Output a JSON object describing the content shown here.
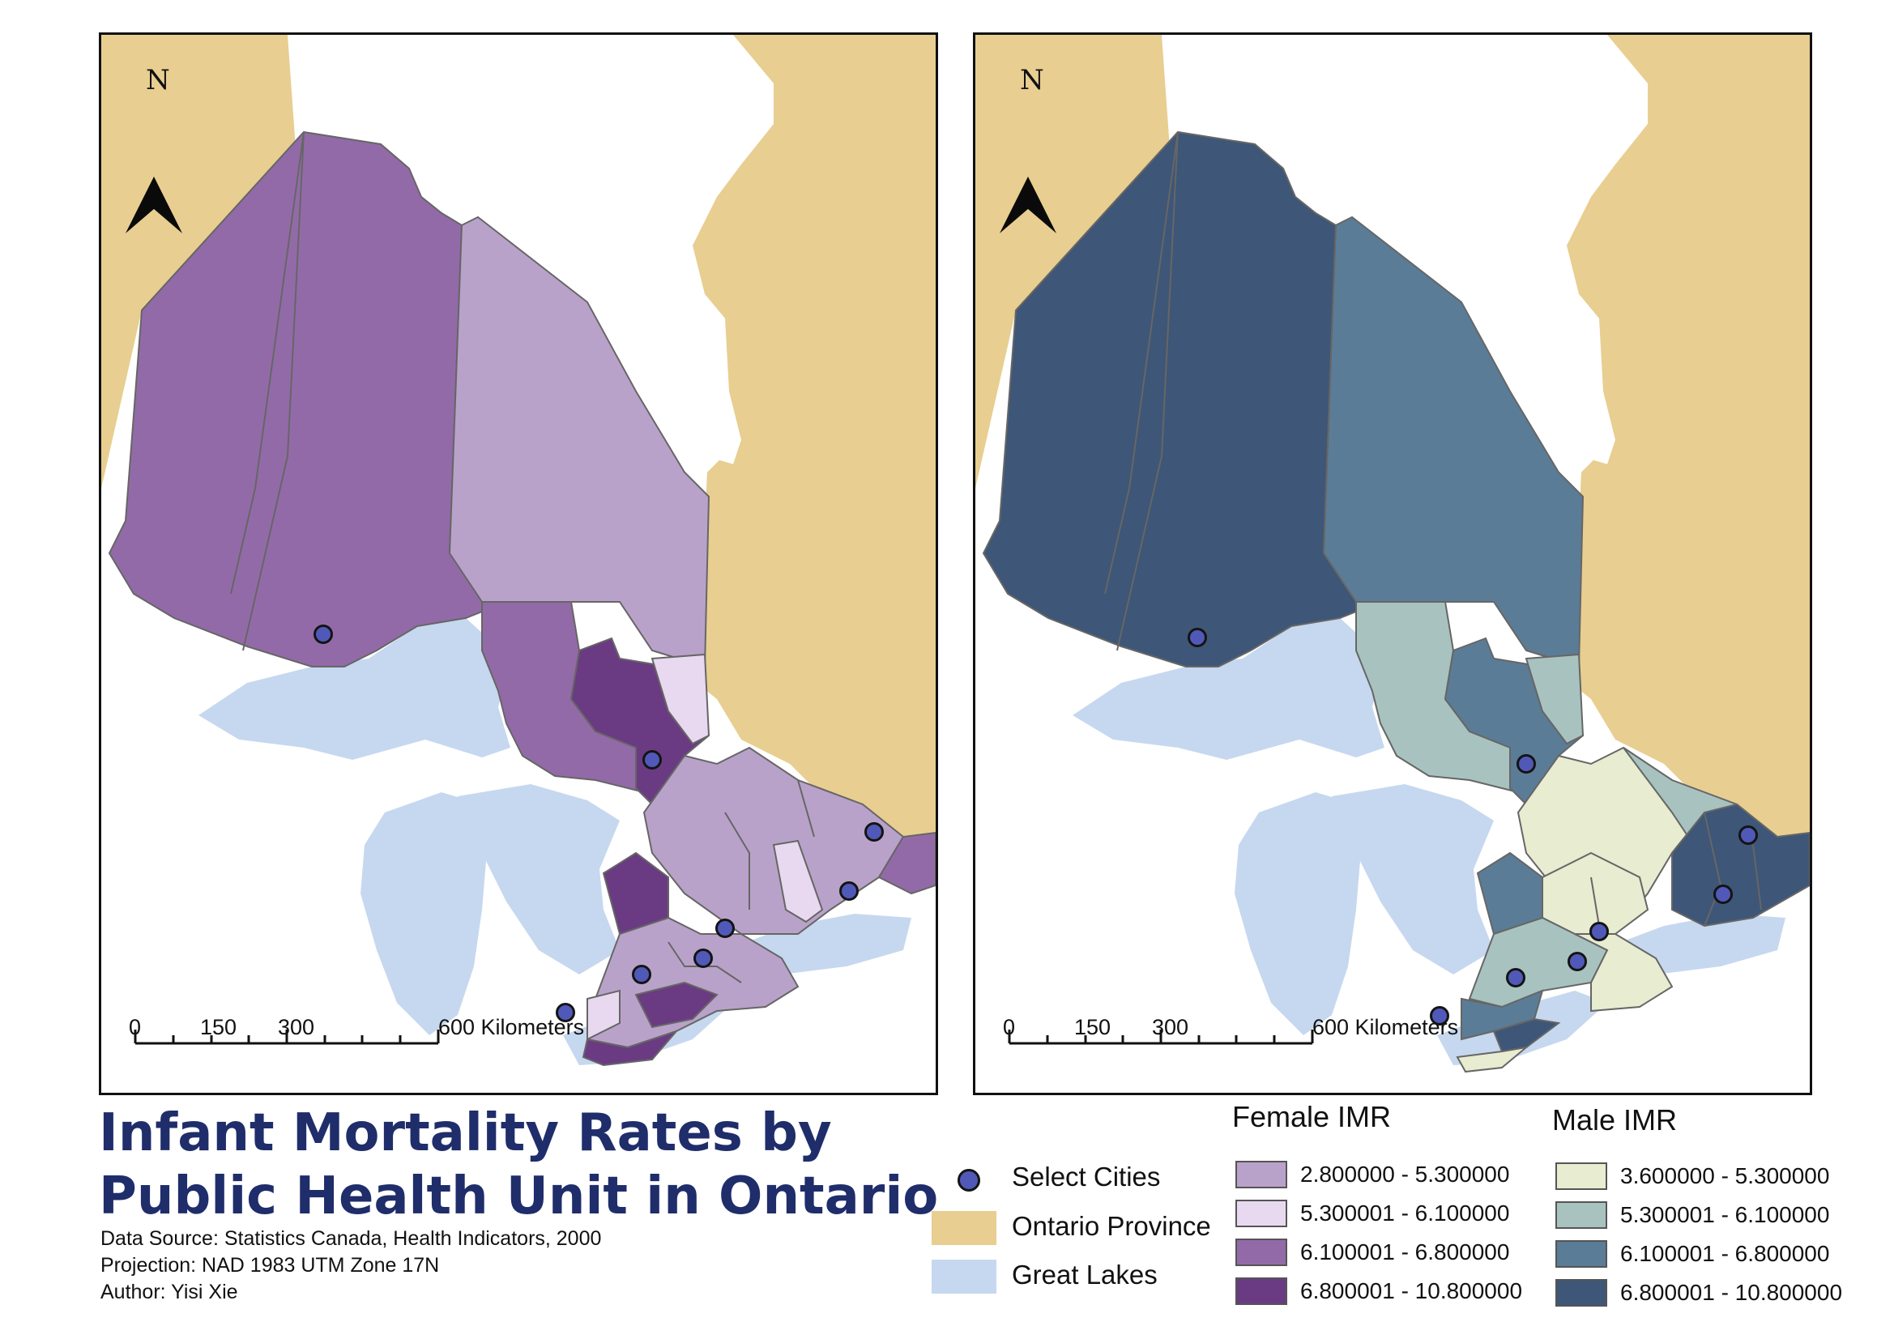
{
  "title": "Infant Mortality Rates by Public Health Unit in Ontario",
  "meta": {
    "source": "Data Source: Statistics Canada, Health Indicators, 2000",
    "projection": "Projection: NAD 1983 UTM Zone 17N",
    "author": "Author: Yisi Xie"
  },
  "north_label": "N",
  "scale_bar": {
    "ticks": [
      "0",
      "150",
      "300",
      "600 Kilometers"
    ]
  },
  "colors": {
    "province": "#e8ce90",
    "lakes": "#c6d8ef",
    "boundary": "#666666",
    "city": "#5159b8",
    "title": "#1f2d6b"
  },
  "legend": {
    "cities": "Select Cities",
    "province": "Ontario Province",
    "lakes": "Great Lakes"
  },
  "female": {
    "heading": "Female IMR",
    "classes": [
      {
        "label": "2.800000 - 5.300000",
        "color": "#b9a2c9"
      },
      {
        "label": "5.300001 - 6.100000",
        "color": "#e8d9f0"
      },
      {
        "label": "6.100001 - 6.800000",
        "color": "#936aa8"
      },
      {
        "label": "6.800001 - 10.800000",
        "color": "#6a3b82"
      }
    ]
  },
  "male": {
    "heading": "Male IMR",
    "classes": [
      {
        "label": "3.600000 - 5.300000",
        "color": "#e8ecd0"
      },
      {
        "label": "5.300001 - 6.100000",
        "color": "#a8c3bf"
      },
      {
        "label": "6.100001 - 6.800000",
        "color": "#5b7c96"
      },
      {
        "label": "6.800001 - 10.800000",
        "color": "#3e5677"
      }
    ]
  }
}
